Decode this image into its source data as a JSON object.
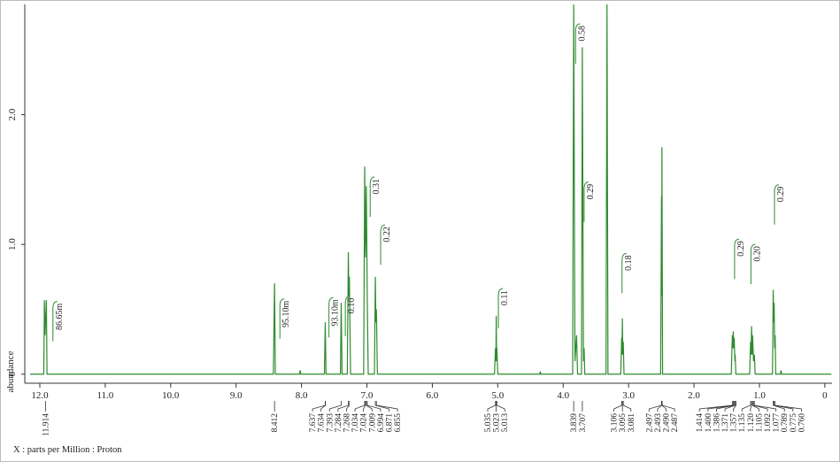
{
  "chart_data": {
    "type": "line",
    "x_label": "X : parts per Million : Proton",
    "y_label": "abundance",
    "color": "#2e8b2e",
    "xlim": [
      12.23,
      -0.11
    ],
    "ylim": [
      -0.07,
      2.85
    ],
    "xticks": [
      {
        "value": 12,
        "label": "12.0"
      },
      {
        "value": 11,
        "label": "11.0"
      },
      {
        "value": 10,
        "label": "10.0"
      },
      {
        "value": 9,
        "label": "9.0"
      },
      {
        "value": 8,
        "label": "8.0"
      },
      {
        "value": 7,
        "label": "7.0"
      },
      {
        "value": 6,
        "label": "6.0"
      },
      {
        "value": 5,
        "label": "5.0"
      },
      {
        "value": 4,
        "label": "4.0"
      },
      {
        "value": 3,
        "label": "3.0"
      },
      {
        "value": 2,
        "label": "2.0"
      },
      {
        "value": 1,
        "label": "1.0"
      },
      0
    ],
    "yticks": [
      0,
      {
        "value": 1,
        "label": "1.0"
      },
      {
        "value": 2,
        "label": "2.0"
      }
    ],
    "x": [
      12.15,
      11.94,
      11.93,
      11.92,
      11.9,
      11.89,
      8.43,
      8.412,
      8.4,
      8.03,
      8.02,
      8.01,
      7.65,
      7.637,
      7.625,
      7.405,
      7.393,
      7.38,
      7.3,
      7.284,
      7.276,
      7.268,
      7.25,
      7.05,
      7.034,
      7.022,
      7.009,
      6.994,
      6.98,
      6.885,
      6.871,
      6.863,
      6.855,
      6.84,
      5.05,
      5.035,
      5.029,
      5.023,
      5.018,
      5.013,
      5.0,
      4.36,
      4.35,
      4.34,
      3.855,
      3.839,
      3.82,
      3.795,
      3.78,
      3.72,
      3.707,
      3.69,
      3.68,
      3.67,
      3.345,
      3.33,
      3.315,
      3.12,
      3.106,
      3.1,
      3.095,
      3.088,
      3.081,
      3.07,
      2.51,
      2.497,
      2.493,
      2.49,
      2.48,
      1.43,
      1.414,
      1.407,
      1.4,
      1.393,
      1.386,
      1.375,
      1.371,
      1.36,
      1.15,
      1.135,
      1.128,
      1.12,
      1.112,
      1.105,
      1.09,
      1.077,
      1.065,
      0.8,
      0.789,
      0.782,
      0.775,
      0.767,
      0.76,
      0.75,
      0.68,
      0.67,
      0.66,
      -0.1
    ],
    "values": [
      0,
      0,
      0.57,
      0.3,
      0.57,
      0,
      0,
      0.7,
      0,
      0,
      0.03,
      0,
      0,
      0.4,
      0,
      0,
      0.55,
      0,
      0,
      0.94,
      0.6,
      0.75,
      0,
      0,
      1.6,
      0.9,
      1.45,
      0.55,
      0,
      0,
      0.75,
      0.4,
      0.5,
      0,
      0,
      0.2,
      0.1,
      0.45,
      0.1,
      0.2,
      0,
      0,
      0.02,
      0,
      0,
      2.85,
      0.1,
      0.3,
      0,
      0,
      2.52,
      0.1,
      0.2,
      0,
      0,
      2.85,
      0,
      0,
      0.28,
      0.15,
      0.43,
      0.15,
      0.25,
      0,
      0,
      1.37,
      0.6,
      1.75,
      0,
      0,
      0.3,
      0.2,
      0.33,
      0.2,
      0.28,
      0.1,
      0.15,
      0,
      0,
      0.25,
      0.15,
      0.37,
      0.15,
      0.3,
      0.1,
      0.15,
      0,
      0,
      0.65,
      0.4,
      0.55,
      0.2,
      0.3,
      0,
      0,
      0.03,
      0,
      0
    ],
    "integrals": [
      {
        "label": "86.65m",
        "x": 11.8,
        "y": 0.56
      },
      {
        "label": "95.10m",
        "x": 8.33,
        "y": 0.58
      },
      {
        "label": "93.10m",
        "x": 7.58,
        "y": 0.59
      },
      {
        "label": "0.10",
        "x": 7.33,
        "y": 0.6
      },
      {
        "label": "0.31",
        "x": 6.95,
        "y": 1.52
      },
      {
        "label": "0.22",
        "x": 6.79,
        "y": 1.15
      },
      {
        "label": "0.11",
        "x": 4.99,
        "y": 0.66
      },
      {
        "label": "0.58",
        "x": 3.81,
        "y": 2.7
      },
      {
        "label": "0.29",
        "x": 3.68,
        "y": 1.48
      },
      {
        "label": "0.18",
        "x": 3.1,
        "y": 0.93
      },
      {
        "label": "0.29",
        "x": 1.38,
        "y": 1.04
      },
      {
        "label": "0.20",
        "x": 1.13,
        "y": 1.0
      },
      {
        "label": "0.29",
        "x": 0.77,
        "y": 1.46
      }
    ],
    "peak_labels": [
      11.914,
      8.412,
      7.637,
      7.634,
      7.393,
      7.284,
      7.268,
      7.034,
      7.024,
      7.009,
      6.994,
      6.871,
      6.855,
      5.035,
      5.023,
      5.013,
      3.839,
      3.707,
      3.106,
      3.095,
      3.081,
      2.497,
      2.493,
      {
        "value": 2.49,
        "label": "2.490"
      },
      2.487,
      1.414,
      {
        "value": 1.4,
        "label": "1.400"
      },
      1.386,
      1.371,
      1.357,
      1.135,
      {
        "value": 1.12,
        "label": "1.120"
      },
      1.105,
      1.092,
      1.077,
      0.789,
      0.775,
      {
        "value": 0.76,
        "label": "0.760"
      }
    ]
  }
}
